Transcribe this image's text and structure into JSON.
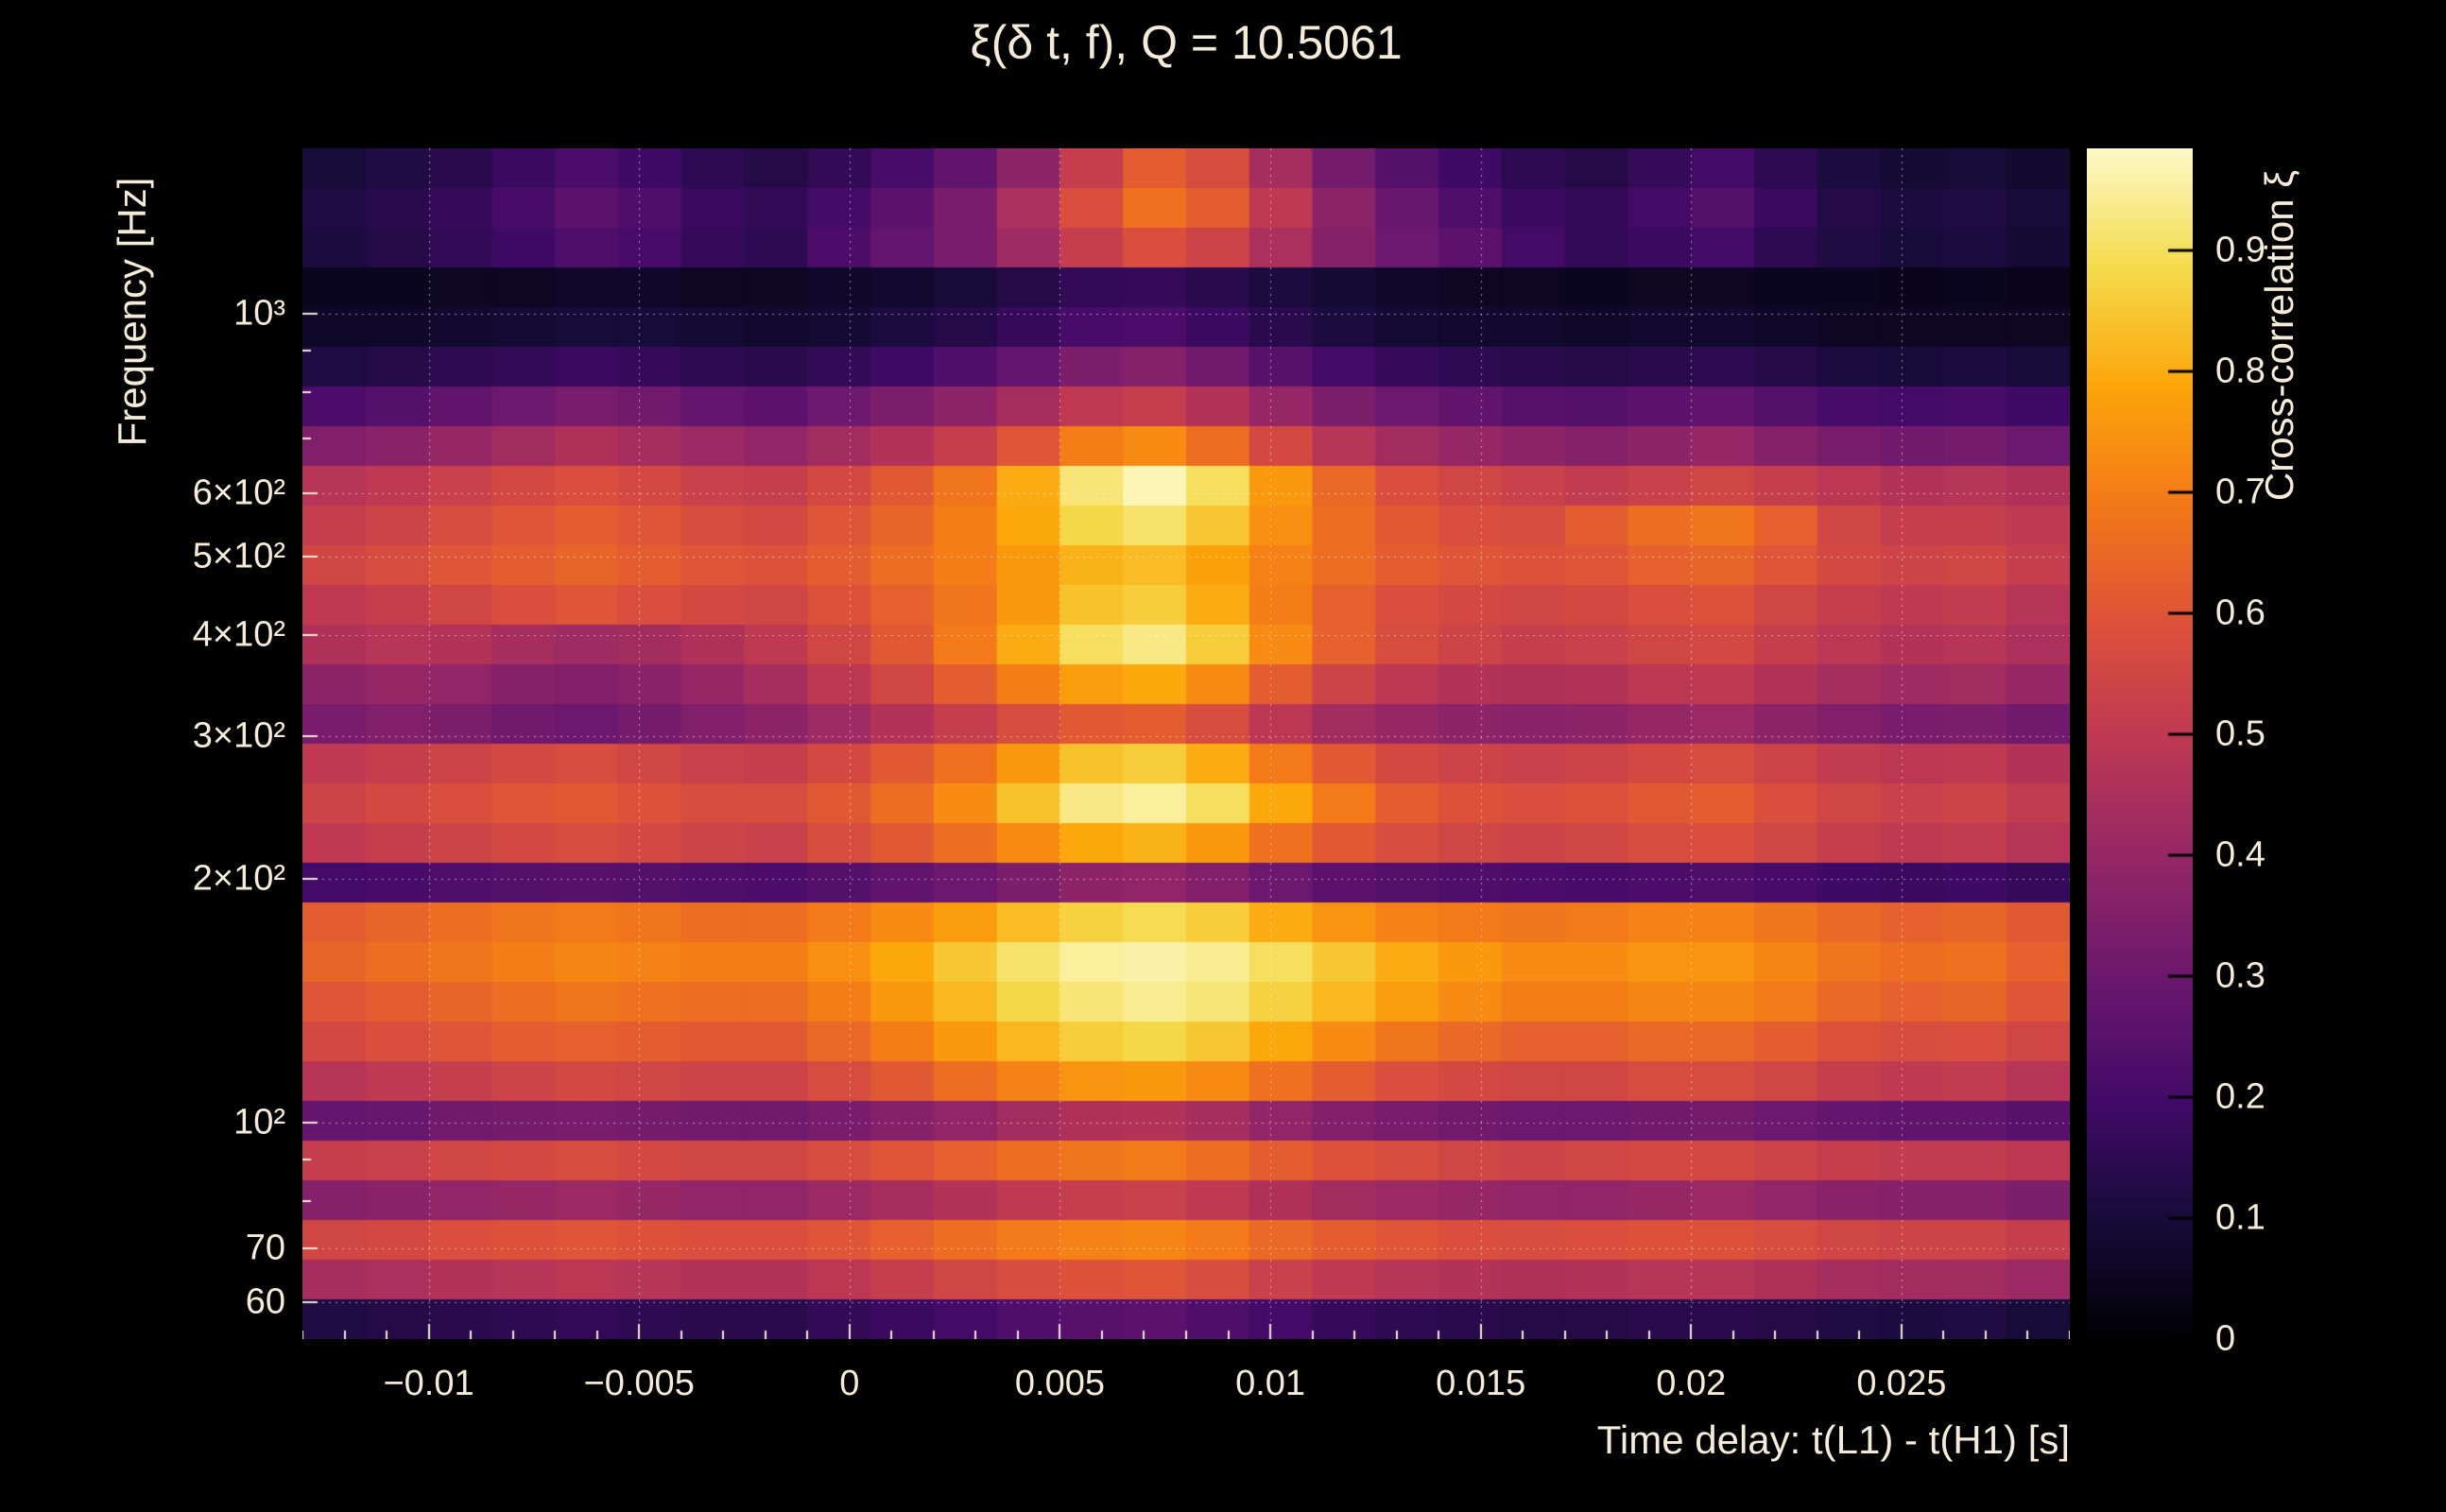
{
  "colors": {
    "background": "#000000",
    "text": "#f4ecd8",
    "grid_line": "#ffffff",
    "axis_tick": "#efe7d3",
    "colorbar_tick": "#000000"
  },
  "chart_data": {
    "type": "heatmap",
    "title": "ξ(δ t, f), Q = 10.5061",
    "q": 10.5061,
    "xlabel": "Time delay: t(L1) - t(H1) [s]",
    "ylabel": "Frequency [Hz]",
    "zlabel": "Cross-correlation ξ",
    "x_scale": "linear",
    "y_scale": "log",
    "xlim": [
      -0.013,
      0.029
    ],
    "ylim": [
      54,
      1600
    ],
    "zlim": [
      0,
      0.984
    ],
    "grid_on": true,
    "x_ticks": [
      {
        "value": -0.01,
        "label": "−0.01"
      },
      {
        "value": -0.005,
        "label": "−0.005"
      },
      {
        "value": 0,
        "label": "0"
      },
      {
        "value": 0.005,
        "label": "0.005"
      },
      {
        "value": 0.01,
        "label": "0.01"
      },
      {
        "value": 0.015,
        "label": "0.015"
      },
      {
        "value": 0.02,
        "label": "0.02"
      },
      {
        "value": 0.025,
        "label": "0.025"
      }
    ],
    "x_minor_step": 0.001,
    "y_ticks": [
      {
        "value": 1000,
        "label": "10³"
      },
      {
        "value": 600,
        "label": "6×10²"
      },
      {
        "value": 500,
        "label": "5×10²"
      },
      {
        "value": 400,
        "label": "4×10²"
      },
      {
        "value": 300,
        "label": "3×10²"
      },
      {
        "value": 200,
        "label": "2×10²"
      },
      {
        "value": 100,
        "label": "10²"
      },
      {
        "value": 70,
        "label": "70"
      },
      {
        "value": 60,
        "label": "60"
      }
    ],
    "y_minor_ticks": [
      80,
      90,
      700,
      800,
      900
    ],
    "z_ticks": [
      {
        "value": 0.9,
        "label": "0.9"
      },
      {
        "value": 0.8,
        "label": "0.8"
      },
      {
        "value": 0.7,
        "label": "0.7"
      },
      {
        "value": 0.6,
        "label": "0.6"
      },
      {
        "value": 0.5,
        "label": "0.5"
      },
      {
        "value": 0.4,
        "label": "0.4"
      },
      {
        "value": 0.3,
        "label": "0.3"
      },
      {
        "value": 0.2,
        "label": "0.2"
      },
      {
        "value": 0.1,
        "label": "0.1"
      },
      {
        "value": 0,
        "label": "0"
      }
    ],
    "colormap": {
      "name": "inferno",
      "stops": [
        "#000004",
        "#160b39",
        "#420a68",
        "#6a176e",
        "#932667",
        "#bc3754",
        "#dd513a",
        "#f37819",
        "#fca50a",
        "#f5db4c",
        "#fdf9c8"
      ]
    },
    "row_frequencies": [
      1490,
      1332,
      1191,
      1065,
      952,
      851,
      761,
      680,
      608,
      544,
      486,
      435,
      389,
      348,
      311,
      278,
      248,
      222,
      198,
      177,
      159,
      142,
      127,
      113,
      101,
      90,
      81,
      72,
      65,
      58
    ],
    "col_time_delays": [
      -0.01225,
      -0.01075,
      -0.00925,
      -0.00775,
      -0.00625,
      -0.00475,
      -0.00325,
      -0.00175,
      -0.00025,
      0.00125,
      0.00275,
      0.00425,
      0.00575,
      0.00725,
      0.00875,
      0.01025,
      0.01175,
      0.01325,
      0.01475,
      0.01625,
      0.01775,
      0.01925,
      0.02075,
      0.02225,
      0.02375,
      0.02525,
      0.02675,
      0.02825
    ],
    "grid_values": [
      [
        0.1,
        0.12,
        0.14,
        0.18,
        0.22,
        0.19,
        0.15,
        0.13,
        0.16,
        0.21,
        0.27,
        0.38,
        0.52,
        0.62,
        0.57,
        0.44,
        0.32,
        0.24,
        0.19,
        0.15,
        0.13,
        0.17,
        0.2,
        0.15,
        0.11,
        0.09,
        0.1,
        0.08
      ],
      [
        0.12,
        0.14,
        0.17,
        0.21,
        0.26,
        0.23,
        0.18,
        0.16,
        0.2,
        0.26,
        0.33,
        0.45,
        0.58,
        0.67,
        0.62,
        0.5,
        0.38,
        0.29,
        0.23,
        0.18,
        0.16,
        0.2,
        0.24,
        0.18,
        0.13,
        0.11,
        0.12,
        0.1
      ],
      [
        0.11,
        0.13,
        0.16,
        0.19,
        0.23,
        0.21,
        0.17,
        0.15,
        0.22,
        0.28,
        0.33,
        0.42,
        0.52,
        0.58,
        0.54,
        0.45,
        0.36,
        0.3,
        0.26,
        0.2,
        0.16,
        0.18,
        0.2,
        0.15,
        0.12,
        0.1,
        0.11,
        0.09
      ],
      [
        0.05,
        0.05,
        0.06,
        0.06,
        0.07,
        0.07,
        0.06,
        0.06,
        0.07,
        0.08,
        0.1,
        0.13,
        0.16,
        0.17,
        0.14,
        0.11,
        0.09,
        0.07,
        0.06,
        0.06,
        0.05,
        0.06,
        0.06,
        0.05,
        0.05,
        0.04,
        0.05,
        0.04
      ],
      [
        0.07,
        0.07,
        0.08,
        0.09,
        0.1,
        0.1,
        0.09,
        0.08,
        0.09,
        0.11,
        0.13,
        0.17,
        0.21,
        0.22,
        0.18,
        0.14,
        0.11,
        0.09,
        0.08,
        0.08,
        0.07,
        0.08,
        0.08,
        0.07,
        0.06,
        0.06,
        0.06,
        0.06
      ],
      [
        0.12,
        0.13,
        0.15,
        0.16,
        0.18,
        0.17,
        0.15,
        0.14,
        0.16,
        0.19,
        0.23,
        0.28,
        0.34,
        0.36,
        0.31,
        0.25,
        0.2,
        0.17,
        0.15,
        0.14,
        0.13,
        0.14,
        0.15,
        0.13,
        0.11,
        0.1,
        0.11,
        0.1
      ],
      [
        0.22,
        0.24,
        0.27,
        0.3,
        0.33,
        0.31,
        0.28,
        0.26,
        0.3,
        0.34,
        0.38,
        0.44,
        0.5,
        0.52,
        0.47,
        0.4,
        0.34,
        0.3,
        0.27,
        0.25,
        0.24,
        0.26,
        0.27,
        0.24,
        0.21,
        0.2,
        0.21,
        0.19
      ],
      [
        0.35,
        0.37,
        0.4,
        0.43,
        0.46,
        0.44,
        0.41,
        0.39,
        0.43,
        0.47,
        0.52,
        0.6,
        0.7,
        0.73,
        0.66,
        0.56,
        0.48,
        0.43,
        0.4,
        0.38,
        0.36,
        0.38,
        0.4,
        0.36,
        0.33,
        0.31,
        0.32,
        0.3
      ],
      [
        0.48,
        0.5,
        0.53,
        0.56,
        0.58,
        0.56,
        0.53,
        0.52,
        0.56,
        0.61,
        0.68,
        0.8,
        0.92,
        0.97,
        0.9,
        0.76,
        0.65,
        0.58,
        0.55,
        0.53,
        0.51,
        0.53,
        0.55,
        0.52,
        0.49,
        0.47,
        0.48,
        0.46
      ],
      [
        0.52,
        0.54,
        0.57,
        0.6,
        0.62,
        0.6,
        0.57,
        0.56,
        0.6,
        0.64,
        0.7,
        0.79,
        0.88,
        0.91,
        0.85,
        0.74,
        0.66,
        0.61,
        0.58,
        0.57,
        0.62,
        0.66,
        0.68,
        0.63,
        0.55,
        0.52,
        0.52,
        0.5
      ],
      [
        0.55,
        0.57,
        0.6,
        0.62,
        0.64,
        0.62,
        0.6,
        0.59,
        0.62,
        0.66,
        0.7,
        0.76,
        0.81,
        0.83,
        0.78,
        0.71,
        0.66,
        0.62,
        0.6,
        0.59,
        0.6,
        0.63,
        0.64,
        0.6,
        0.56,
        0.54,
        0.55,
        0.52
      ],
      [
        0.5,
        0.52,
        0.55,
        0.58,
        0.6,
        0.58,
        0.56,
        0.55,
        0.59,
        0.63,
        0.68,
        0.76,
        0.84,
        0.86,
        0.8,
        0.7,
        0.63,
        0.58,
        0.56,
        0.55,
        0.56,
        0.58,
        0.59,
        0.55,
        0.52,
        0.5,
        0.51,
        0.48
      ],
      [
        0.46,
        0.48,
        0.47,
        0.44,
        0.42,
        0.43,
        0.46,
        0.5,
        0.55,
        0.61,
        0.69,
        0.8,
        0.9,
        0.93,
        0.86,
        0.73,
        0.63,
        0.57,
        0.54,
        0.52,
        0.53,
        0.55,
        0.56,
        0.52,
        0.49,
        0.47,
        0.48,
        0.45
      ],
      [
        0.38,
        0.4,
        0.39,
        0.36,
        0.35,
        0.37,
        0.4,
        0.44,
        0.49,
        0.55,
        0.62,
        0.7,
        0.77,
        0.79,
        0.73,
        0.62,
        0.54,
        0.49,
        0.47,
        0.46,
        0.47,
        0.49,
        0.5,
        0.47,
        0.44,
        0.42,
        0.43,
        0.4
      ],
      [
        0.33,
        0.35,
        0.34,
        0.31,
        0.3,
        0.32,
        0.35,
        0.38,
        0.42,
        0.47,
        0.52,
        0.57,
        0.61,
        0.62,
        0.57,
        0.49,
        0.43,
        0.4,
        0.38,
        0.37,
        0.38,
        0.4,
        0.41,
        0.38,
        0.35,
        0.33,
        0.34,
        0.31
      ],
      [
        0.5,
        0.52,
        0.54,
        0.56,
        0.57,
        0.55,
        0.53,
        0.52,
        0.56,
        0.61,
        0.67,
        0.76,
        0.84,
        0.86,
        0.8,
        0.69,
        0.61,
        0.56,
        0.54,
        0.53,
        0.54,
        0.56,
        0.57,
        0.54,
        0.51,
        0.49,
        0.5,
        0.47
      ],
      [
        0.54,
        0.56,
        0.58,
        0.6,
        0.61,
        0.59,
        0.57,
        0.57,
        0.61,
        0.66,
        0.73,
        0.84,
        0.93,
        0.95,
        0.9,
        0.79,
        0.69,
        0.62,
        0.59,
        0.58,
        0.59,
        0.61,
        0.62,
        0.58,
        0.55,
        0.53,
        0.54,
        0.51
      ],
      [
        0.5,
        0.52,
        0.54,
        0.56,
        0.57,
        0.56,
        0.54,
        0.53,
        0.57,
        0.61,
        0.66,
        0.73,
        0.79,
        0.81,
        0.76,
        0.67,
        0.61,
        0.57,
        0.55,
        0.54,
        0.55,
        0.57,
        0.58,
        0.55,
        0.52,
        0.5,
        0.51,
        0.48
      ],
      [
        0.2,
        0.21,
        0.23,
        0.24,
        0.25,
        0.24,
        0.23,
        0.22,
        0.24,
        0.27,
        0.3,
        0.34,
        0.38,
        0.39,
        0.35,
        0.3,
        0.26,
        0.24,
        0.23,
        0.22,
        0.21,
        0.22,
        0.23,
        0.21,
        0.19,
        0.18,
        0.19,
        0.17
      ],
      [
        0.62,
        0.64,
        0.66,
        0.68,
        0.69,
        0.68,
        0.66,
        0.66,
        0.69,
        0.73,
        0.77,
        0.83,
        0.87,
        0.89,
        0.86,
        0.8,
        0.75,
        0.71,
        0.69,
        0.68,
        0.69,
        0.71,
        0.71,
        0.68,
        0.65,
        0.63,
        0.64,
        0.61
      ],
      [
        0.64,
        0.66,
        0.68,
        0.7,
        0.72,
        0.71,
        0.7,
        0.7,
        0.74,
        0.79,
        0.85,
        0.91,
        0.95,
        0.96,
        0.94,
        0.9,
        0.85,
        0.8,
        0.76,
        0.73,
        0.73,
        0.75,
        0.75,
        0.72,
        0.68,
        0.66,
        0.67,
        0.63
      ],
      [
        0.6,
        0.62,
        0.64,
        0.66,
        0.68,
        0.67,
        0.66,
        0.66,
        0.7,
        0.76,
        0.82,
        0.88,
        0.92,
        0.94,
        0.92,
        0.87,
        0.82,
        0.77,
        0.73,
        0.7,
        0.7,
        0.72,
        0.72,
        0.69,
        0.65,
        0.63,
        0.64,
        0.6
      ],
      [
        0.56,
        0.58,
        0.6,
        0.62,
        0.63,
        0.62,
        0.61,
        0.61,
        0.65,
        0.7,
        0.76,
        0.82,
        0.86,
        0.88,
        0.85,
        0.79,
        0.73,
        0.68,
        0.65,
        0.63,
        0.63,
        0.65,
        0.65,
        0.62,
        0.59,
        0.57,
        0.58,
        0.55
      ],
      [
        0.48,
        0.5,
        0.52,
        0.54,
        0.56,
        0.55,
        0.54,
        0.54,
        0.57,
        0.61,
        0.66,
        0.71,
        0.75,
        0.76,
        0.73,
        0.67,
        0.62,
        0.58,
        0.56,
        0.55,
        0.55,
        0.57,
        0.57,
        0.55,
        0.52,
        0.5,
        0.51,
        0.48
      ],
      [
        0.28,
        0.29,
        0.31,
        0.32,
        0.33,
        0.32,
        0.31,
        0.31,
        0.33,
        0.36,
        0.39,
        0.43,
        0.46,
        0.47,
        0.44,
        0.39,
        0.35,
        0.33,
        0.31,
        0.3,
        0.3,
        0.31,
        0.32,
        0.3,
        0.28,
        0.27,
        0.27,
        0.25
      ],
      [
        0.52,
        0.53,
        0.55,
        0.56,
        0.57,
        0.56,
        0.55,
        0.55,
        0.57,
        0.6,
        0.63,
        0.66,
        0.68,
        0.69,
        0.66,
        0.62,
        0.59,
        0.57,
        0.55,
        0.54,
        0.55,
        0.56,
        0.56,
        0.54,
        0.52,
        0.51,
        0.51,
        0.49
      ],
      [
        0.36,
        0.37,
        0.39,
        0.4,
        0.41,
        0.4,
        0.39,
        0.39,
        0.41,
        0.44,
        0.47,
        0.5,
        0.52,
        0.53,
        0.5,
        0.46,
        0.43,
        0.41,
        0.4,
        0.39,
        0.39,
        0.4,
        0.41,
        0.39,
        0.37,
        0.36,
        0.36,
        0.34
      ],
      [
        0.55,
        0.56,
        0.58,
        0.59,
        0.6,
        0.59,
        0.58,
        0.58,
        0.6,
        0.63,
        0.66,
        0.69,
        0.71,
        0.72,
        0.69,
        0.65,
        0.62,
        0.6,
        0.58,
        0.57,
        0.58,
        0.59,
        0.59,
        0.57,
        0.55,
        0.54,
        0.54,
        0.52
      ],
      [
        0.44,
        0.45,
        0.47,
        0.48,
        0.49,
        0.48,
        0.47,
        0.47,
        0.49,
        0.52,
        0.55,
        0.57,
        0.59,
        0.6,
        0.57,
        0.53,
        0.5,
        0.48,
        0.47,
        0.46,
        0.47,
        0.48,
        0.48,
        0.46,
        0.44,
        0.43,
        0.43,
        0.41
      ],
      [
        0.12,
        0.13,
        0.14,
        0.15,
        0.16,
        0.15,
        0.14,
        0.14,
        0.16,
        0.18,
        0.2,
        0.23,
        0.25,
        0.26,
        0.23,
        0.2,
        0.17,
        0.15,
        0.14,
        0.13,
        0.13,
        0.14,
        0.14,
        0.13,
        0.12,
        0.11,
        0.12,
        0.1
      ]
    ]
  }
}
